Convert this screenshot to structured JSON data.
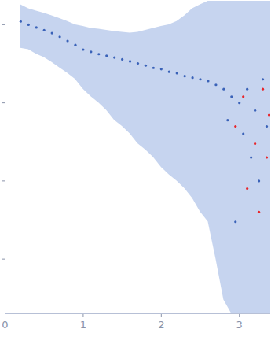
{
  "chart_data": {
    "type": "scatter",
    "log": "y",
    "grid": false,
    "tick_labels": "x",
    "xlim": [
      0,
      3.4
    ],
    "xticks": [
      0,
      1,
      2,
      3
    ],
    "ylim": [
      0.0002,
      2
    ],
    "yticks": [
      0.001,
      0.01,
      0.1,
      1
    ],
    "series": [
      {
        "type": "area",
        "color": "#c6d4ef",
        "x": [
          0.2,
          0.3,
          0.4,
          0.5,
          0.6,
          0.7,
          0.8,
          0.9,
          1.0,
          1.1,
          1.2,
          1.3,
          1.4,
          1.5,
          1.6,
          1.7,
          1.8,
          1.9,
          2.0,
          2.1,
          2.2,
          2.3,
          2.4,
          2.5,
          2.6,
          2.7,
          2.8,
          2.9,
          3.0,
          3.1,
          3.2,
          3.3,
          3.4
        ],
        "lower": [
          0.5,
          0.48,
          0.42,
          0.38,
          0.33,
          0.28,
          0.24,
          0.2,
          0.15,
          0.12,
          0.1,
          0.08,
          0.06,
          0.05,
          0.04,
          0.03,
          0.025,
          0.02,
          0.015,
          0.012,
          0.01,
          0.008,
          0.006,
          0.004,
          0.003,
          0.001,
          0.0003,
          0.0002,
          0.0002,
          0.0002,
          0.0002,
          0.0002,
          0.0002
        ],
        "upper": [
          1.8,
          1.6,
          1.5,
          1.4,
          1.3,
          1.2,
          1.1,
          1.0,
          0.95,
          0.9,
          0.88,
          0.85,
          0.82,
          0.8,
          0.78,
          0.8,
          0.85,
          0.9,
          0.95,
          1.0,
          1.1,
          1.3,
          1.6,
          1.8,
          2,
          2,
          2,
          2,
          2,
          2,
          2,
          2,
          2
        ]
      },
      {
        "type": "scatter",
        "marker": "circle",
        "color": "#3a62b8",
        "x": [
          0.2,
          0.3,
          0.4,
          0.5,
          0.6,
          0.7,
          0.8,
          0.9,
          1.0,
          1.1,
          1.2,
          1.3,
          1.4,
          1.5,
          1.6,
          1.7,
          1.8,
          1.9,
          2.0,
          2.1,
          2.2,
          2.3,
          2.4,
          2.5,
          2.6,
          2.7,
          2.8,
          2.85,
          2.9,
          2.95,
          3.0,
          3.05,
          3.1,
          3.15,
          3.2,
          3.25,
          3.3,
          3.35
        ],
        "values": [
          1.1,
          1.0,
          0.92,
          0.85,
          0.78,
          0.7,
          0.62,
          0.55,
          0.48,
          0.45,
          0.42,
          0.4,
          0.38,
          0.36,
          0.34,
          0.32,
          0.3,
          0.28,
          0.27,
          0.25,
          0.24,
          0.22,
          0.21,
          0.2,
          0.19,
          0.17,
          0.15,
          0.06,
          0.12,
          0.003,
          0.1,
          0.04,
          0.15,
          0.02,
          0.08,
          0.01,
          0.2,
          0.05
        ]
      },
      {
        "type": "scatter",
        "marker": "circle",
        "color": "#e8252a",
        "x": [
          2.95,
          3.05,
          3.1,
          3.2,
          3.25,
          3.3,
          3.35,
          3.38
        ],
        "values": [
          0.05,
          0.12,
          0.008,
          0.03,
          0.004,
          0.15,
          0.02,
          0.07
        ]
      }
    ]
  }
}
